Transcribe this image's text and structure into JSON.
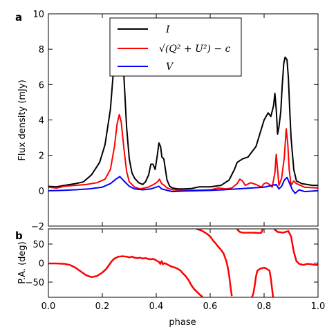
{
  "figure": {
    "panel_a_label": "a",
    "panel_b_label": "b"
  },
  "chart_data": [
    {
      "type": "line",
      "panel": "a",
      "ylabel": "Flux density (mJy)",
      "xlabel": "",
      "xlim": [
        0.0,
        1.0
      ],
      "ylim": [
        -2,
        10
      ],
      "x_ticks": [
        "0.0",
        "0.2",
        "0.4",
        "0.6",
        "0.8",
        "1.0"
      ],
      "y_ticks": [
        "−2",
        "0",
        "2",
        "4",
        "6",
        "8",
        "10"
      ],
      "legend_position": "top-center",
      "grid": false,
      "series": [
        {
          "name": "I",
          "color": "#000000",
          "points": [
            [
              0.0,
              0.25
            ],
            [
              0.03,
              0.22
            ],
            [
              0.06,
              0.3
            ],
            [
              0.1,
              0.4
            ],
            [
              0.13,
              0.5
            ],
            [
              0.16,
              0.9
            ],
            [
              0.19,
              1.6
            ],
            [
              0.21,
              2.6
            ],
            [
              0.23,
              4.6
            ],
            [
              0.245,
              7.5
            ],
            [
              0.258,
              9.3
            ],
            [
              0.265,
              9.65
            ],
            [
              0.272,
              9.2
            ],
            [
              0.28,
              6.5
            ],
            [
              0.29,
              3.6
            ],
            [
              0.3,
              1.8
            ],
            [
              0.31,
              1.0
            ],
            [
              0.32,
              0.7
            ],
            [
              0.335,
              0.45
            ],
            [
              0.35,
              0.35
            ],
            [
              0.36,
              0.5
            ],
            [
              0.372,
              0.9
            ],
            [
              0.38,
              1.5
            ],
            [
              0.388,
              1.5
            ],
            [
              0.396,
              1.2
            ],
            [
              0.403,
              1.9
            ],
            [
              0.41,
              2.7
            ],
            [
              0.416,
              2.5
            ],
            [
              0.421,
              1.9
            ],
            [
              0.428,
              1.8
            ],
            [
              0.433,
              1.3
            ],
            [
              0.44,
              0.6
            ],
            [
              0.45,
              0.25
            ],
            [
              0.46,
              0.15
            ],
            [
              0.48,
              0.1
            ],
            [
              0.5,
              0.1
            ],
            [
              0.53,
              0.12
            ],
            [
              0.56,
              0.22
            ],
            [
              0.6,
              0.22
            ],
            [
              0.64,
              0.3
            ],
            [
              0.67,
              0.6
            ],
            [
              0.69,
              1.2
            ],
            [
              0.7,
              1.6
            ],
            [
              0.72,
              1.8
            ],
            [
              0.74,
              1.9
            ],
            [
              0.77,
              2.5
            ],
            [
              0.79,
              3.5
            ],
            [
              0.8,
              4.0
            ],
            [
              0.815,
              4.4
            ],
            [
              0.825,
              4.2
            ],
            [
              0.835,
              4.8
            ],
            [
              0.84,
              5.5
            ],
            [
              0.845,
              4.6
            ],
            [
              0.85,
              3.2
            ],
            [
              0.855,
              3.6
            ],
            [
              0.862,
              4.5
            ],
            [
              0.867,
              5.9
            ],
            [
              0.873,
              7.2
            ],
            [
              0.878,
              7.55
            ],
            [
              0.885,
              7.4
            ],
            [
              0.89,
              6.4
            ],
            [
              0.895,
              4.6
            ],
            [
              0.9,
              3.0
            ],
            [
              0.91,
              1.2
            ],
            [
              0.92,
              0.55
            ],
            [
              0.94,
              0.4
            ],
            [
              0.96,
              0.35
            ],
            [
              0.98,
              0.3
            ],
            [
              1.0,
              0.3
            ]
          ]
        },
        {
          "name": "√(Q² + U²) − c",
          "color": "#ff0000",
          "points": [
            [
              0.0,
              0.2
            ],
            [
              0.03,
              0.15
            ],
            [
              0.06,
              0.25
            ],
            [
              0.1,
              0.3
            ],
            [
              0.14,
              0.35
            ],
            [
              0.18,
              0.45
            ],
            [
              0.21,
              0.65
            ],
            [
              0.23,
              1.2
            ],
            [
              0.245,
              2.5
            ],
            [
              0.255,
              3.8
            ],
            [
              0.263,
              4.3
            ],
            [
              0.27,
              3.9
            ],
            [
              0.28,
              2.4
            ],
            [
              0.29,
              1.1
            ],
            [
              0.3,
              0.5
            ],
            [
              0.32,
              0.2
            ],
            [
              0.34,
              0.1
            ],
            [
              0.37,
              0.2
            ],
            [
              0.39,
              0.35
            ],
            [
              0.405,
              0.5
            ],
            [
              0.412,
              0.65
            ],
            [
              0.42,
              0.4
            ],
            [
              0.43,
              0.3
            ],
            [
              0.44,
              0.15
            ],
            [
              0.46,
              0.05
            ],
            [
              0.5,
              0.02
            ],
            [
              0.55,
              0.03
            ],
            [
              0.6,
              0.05
            ],
            [
              0.63,
              0.15
            ],
            [
              0.66,
              0.1
            ],
            [
              0.68,
              0.15
            ],
            [
              0.7,
              0.4
            ],
            [
              0.71,
              0.65
            ],
            [
              0.72,
              0.55
            ],
            [
              0.73,
              0.3
            ],
            [
              0.75,
              0.45
            ],
            [
              0.77,
              0.35
            ],
            [
              0.79,
              0.2
            ],
            [
              0.8,
              0.4
            ],
            [
              0.81,
              0.45
            ],
            [
              0.82,
              0.35
            ],
            [
              0.83,
              0.2
            ],
            [
              0.84,
              1.0
            ],
            [
              0.845,
              2.05
            ],
            [
              0.85,
              1.2
            ],
            [
              0.855,
              0.3
            ],
            [
              0.865,
              0.7
            ],
            [
              0.875,
              1.9
            ],
            [
              0.882,
              3.5
            ],
            [
              0.888,
              2.6
            ],
            [
              0.893,
              1.2
            ],
            [
              0.9,
              0.3
            ],
            [
              0.91,
              0.55
            ],
            [
              0.92,
              0.4
            ],
            [
              0.95,
              0.2
            ],
            [
              1.0,
              0.15
            ]
          ]
        },
        {
          "name": "V",
          "color": "#0000ff",
          "points": [
            [
              0.0,
              0.0
            ],
            [
              0.05,
              0.02
            ],
            [
              0.1,
              0.05
            ],
            [
              0.15,
              0.1
            ],
            [
              0.2,
              0.2
            ],
            [
              0.23,
              0.4
            ],
            [
              0.25,
              0.65
            ],
            [
              0.265,
              0.8
            ],
            [
              0.28,
              0.55
            ],
            [
              0.3,
              0.25
            ],
            [
              0.32,
              0.1
            ],
            [
              0.35,
              0.05
            ],
            [
              0.38,
              0.1
            ],
            [
              0.4,
              0.2
            ],
            [
              0.41,
              0.25
            ],
            [
              0.42,
              0.1
            ],
            [
              0.44,
              0.02
            ],
            [
              0.46,
              -0.05
            ],
            [
              0.5,
              -0.02
            ],
            [
              0.55,
              0.0
            ],
            [
              0.6,
              0.02
            ],
            [
              0.65,
              0.05
            ],
            [
              0.7,
              0.1
            ],
            [
              0.75,
              0.15
            ],
            [
              0.8,
              0.2
            ],
            [
              0.83,
              0.3
            ],
            [
              0.845,
              0.35
            ],
            [
              0.855,
              0.1
            ],
            [
              0.865,
              0.25
            ],
            [
              0.875,
              0.6
            ],
            [
              0.885,
              0.75
            ],
            [
              0.895,
              0.4
            ],
            [
              0.905,
              0.05
            ],
            [
              0.915,
              -0.15
            ],
            [
              0.93,
              0.05
            ],
            [
              0.95,
              -0.05
            ],
            [
              1.0,
              0.0
            ]
          ]
        }
      ]
    },
    {
      "type": "scatter",
      "panel": "b",
      "ylabel": "P.A. (deg)",
      "xlabel": "phase",
      "xlim": [
        0.0,
        1.0
      ],
      "ylim": [
        -90,
        90
      ],
      "x_ticks": [
        "0.0",
        "0.2",
        "0.4",
        "0.6",
        "0.8",
        "1.0"
      ],
      "y_ticks": [
        "−50",
        "0",
        "50"
      ],
      "grid": false,
      "color": "#ff0000",
      "segments": [
        [
          [
            0.0,
            -1
          ],
          [
            0.03,
            -1
          ],
          [
            0.06,
            -2
          ],
          [
            0.08,
            -5
          ],
          [
            0.1,
            -12
          ],
          [
            0.12,
            -22
          ],
          [
            0.14,
            -32
          ],
          [
            0.16,
            -37
          ],
          [
            0.18,
            -34
          ],
          [
            0.2,
            -25
          ],
          [
            0.215,
            -15
          ],
          [
            0.225,
            -5
          ],
          [
            0.235,
            5
          ],
          [
            0.245,
            12
          ],
          [
            0.26,
            17
          ],
          [
            0.275,
            18
          ],
          [
            0.29,
            17
          ],
          [
            0.3,
            15
          ],
          [
            0.31,
            17
          ],
          [
            0.32,
            14
          ],
          [
            0.33,
            13
          ],
          [
            0.34,
            14
          ],
          [
            0.35,
            12
          ],
          [
            0.36,
            13
          ],
          [
            0.37,
            11
          ],
          [
            0.38,
            10
          ],
          [
            0.39,
            11
          ],
          [
            0.4,
            7
          ],
          [
            0.41,
            3
          ],
          [
            0.415,
            -2
          ],
          [
            0.42,
            5
          ],
          [
            0.425,
            -3
          ],
          [
            0.43,
            0
          ],
          [
            0.44,
            -3
          ],
          [
            0.45,
            -7
          ],
          [
            0.46,
            -10
          ],
          [
            0.47,
            -12
          ],
          [
            0.48,
            -15
          ],
          [
            0.49,
            -20
          ],
          [
            0.5,
            -28
          ],
          [
            0.51,
            -35
          ],
          [
            0.52,
            -45
          ],
          [
            0.53,
            -58
          ],
          [
            0.54,
            -68
          ],
          [
            0.55,
            -75
          ],
          [
            0.56,
            -82
          ],
          [
            0.57,
            -88
          ]
        ],
        [
          [
            0.55,
            90
          ],
          [
            0.57,
            85
          ],
          [
            0.59,
            76
          ],
          [
            0.6,
            70
          ],
          [
            0.61,
            60
          ],
          [
            0.62,
            52
          ],
          [
            0.63,
            43
          ],
          [
            0.64,
            35
          ],
          [
            0.65,
            25
          ],
          [
            0.655,
            15
          ],
          [
            0.66,
            5
          ],
          [
            0.665,
            -10
          ],
          [
            0.67,
            -30
          ],
          [
            0.675,
            -60
          ],
          [
            0.68,
            -85
          ]
        ],
        [
          [
            0.7,
            90
          ],
          [
            0.705,
            85
          ],
          [
            0.71,
            82
          ],
          [
            0.72,
            80
          ],
          [
            0.74,
            80
          ],
          [
            0.76,
            80
          ],
          [
            0.78,
            79
          ],
          [
            0.79,
            80
          ],
          [
            0.795,
            90
          ]
        ],
        [
          [
            0.755,
            -90
          ],
          [
            0.76,
            -80
          ],
          [
            0.765,
            -60
          ],
          [
            0.77,
            -35
          ],
          [
            0.775,
            -20
          ],
          [
            0.785,
            -15
          ],
          [
            0.8,
            -12
          ],
          [
            0.81,
            -15
          ],
          [
            0.82,
            -20
          ],
          [
            0.825,
            -40
          ],
          [
            0.83,
            -70
          ],
          [
            0.833,
            -88
          ]
        ],
        [
          [
            0.84,
            88
          ],
          [
            0.85,
            82
          ],
          [
            0.86,
            81
          ],
          [
            0.87,
            80
          ],
          [
            0.88,
            82
          ],
          [
            0.89,
            84
          ],
          [
            0.9,
            70
          ],
          [
            0.91,
            30
          ],
          [
            0.92,
            5
          ],
          [
            0.93,
            -2
          ],
          [
            0.945,
            -5
          ],
          [
            0.96,
            -2
          ],
          [
            0.975,
            -3
          ],
          [
            0.99,
            -5
          ],
          [
            1.0,
            -4
          ]
        ]
      ]
    }
  ]
}
